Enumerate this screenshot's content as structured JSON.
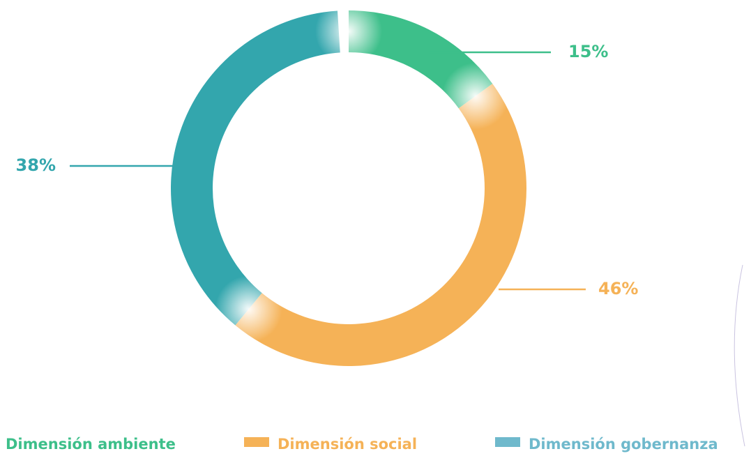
{
  "chart_data": {
    "type": "pie",
    "categories": [
      "Dimensión ambiente",
      "Dimensión social",
      "Dimensión gobernanza"
    ],
    "values": [
      15,
      46,
      38
    ],
    "value_labels": [
      "15%",
      "46%",
      "38%"
    ],
    "colors": [
      "#3dbf8a",
      "#f5b257",
      "#33a6ad"
    ],
    "legend_colors": [
      "#3dbf8a",
      "#f5b257",
      "#6fb9cc"
    ],
    "donut": true,
    "legend": "bottom"
  }
}
